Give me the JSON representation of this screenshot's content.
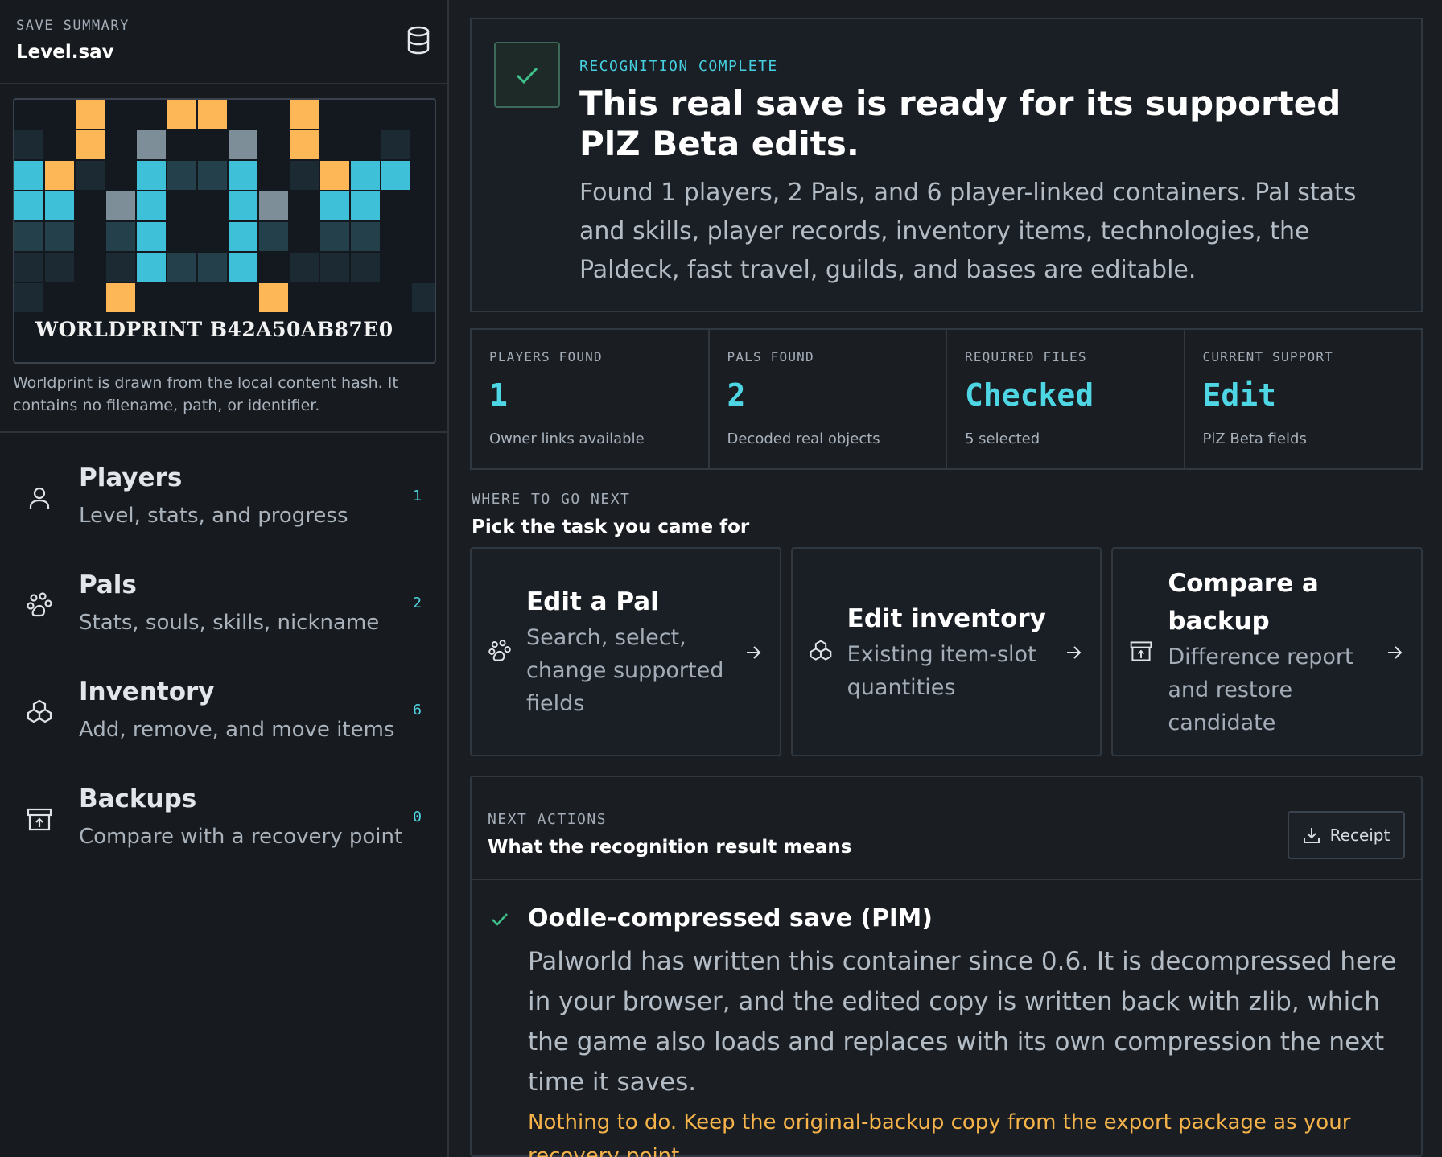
{
  "sidebar": {
    "eyebrow": "SAVE SUMMARY",
    "file_name": "Level.sav",
    "database_icon": "database-icon",
    "worldprint": {
      "label": "WORLDPRINT B42A50AB87E0",
      "note": "Worldprint is drawn from the local content hash. It contains no filename, path, or identifier.",
      "colors": {
        "orange": "#fdb757",
        "cyan": "#3ec0d9",
        "gray": "#7d8e98",
        "dark": "#24404b",
        "darker": "#1b2a33"
      }
    },
    "nav": [
      {
        "title": "Players",
        "subtitle": "Level, stats, and progress",
        "count": "1",
        "icon": "user-icon"
      },
      {
        "title": "Pals",
        "subtitle": "Stats, souls, skills, nickname",
        "count": "2",
        "icon": "paw-icon"
      },
      {
        "title": "Inventory",
        "subtitle": "Add, remove, and move items",
        "count": "6",
        "icon": "boxes-icon"
      },
      {
        "title": "Backups",
        "subtitle": "Compare with a recovery point",
        "count": "0",
        "icon": "archive-icon"
      }
    ]
  },
  "hero": {
    "eyebrow": "RECOGNITION COMPLETE",
    "title": "This real save is ready for its supported PlZ Beta edits.",
    "text": "Found 1 players, 2 Pals, and 6 player-linked containers. Pal stats and skills, player records, inventory items, technologies, the Paldeck, fast travel, guilds, and bases are editable.",
    "icon": "check-icon"
  },
  "stats": [
    {
      "label": "PLAYERS FOUND",
      "value": "1",
      "sub": "Owner links available"
    },
    {
      "label": "PALS FOUND",
      "value": "2",
      "sub": "Decoded real objects"
    },
    {
      "label": "REQUIRED FILES",
      "value": "Checked",
      "sub": "5 selected"
    },
    {
      "label": "CURRENT SUPPORT",
      "value": "Edit",
      "sub": "PlZ Beta fields"
    }
  ],
  "where": {
    "eyebrow": "WHERE TO GO NEXT",
    "title": "Pick the task you came for"
  },
  "tasks": [
    {
      "title": "Edit a Pal",
      "desc": "Search, select, change supported fields",
      "icon": "paw-icon"
    },
    {
      "title": "Edit inventory",
      "desc": "Existing item-slot quantities",
      "icon": "boxes-icon"
    },
    {
      "title": "Compare a backup",
      "desc": "Difference report and restore candidate",
      "icon": "archive-icon"
    }
  ],
  "actions": {
    "eyebrow": "NEXT ACTIONS",
    "title": "What the recognition result means",
    "receipt_label": "Receipt",
    "items": [
      {
        "title": "Oodle-compressed save (PlM)",
        "text": "Palworld has written this container since 0.6. It is decompressed here in your browser, and the edited copy is written back with zlib, which the game also loads and replaces with its own compression the next time it saves.",
        "note": "Nothing to do. Keep the original-backup copy from the export package as your recovery point."
      }
    ]
  },
  "colors": {
    "accent": "#4fd6e4",
    "success": "#3fbf8a",
    "warning": "#f5b34a",
    "background": "#1a1e23"
  }
}
